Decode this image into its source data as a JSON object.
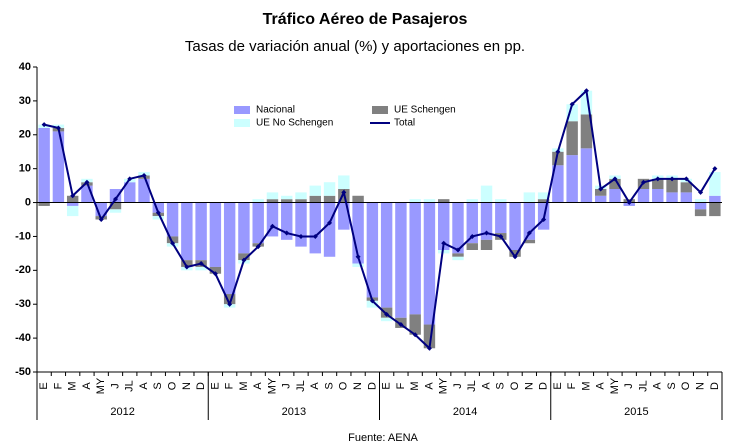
{
  "chart_data": {
    "type": "bar",
    "title": "Tráfico Aéreo de Pasajeros",
    "subtitle": "Tasas de variación anual (%) y aportaciones en pp.",
    "source": "Fuente: AENA",
    "stacked": true,
    "categories": [
      "E",
      "F",
      "M",
      "A",
      "MY",
      "J",
      "JL",
      "A",
      "S",
      "O",
      "N",
      "D",
      "E",
      "F",
      "M",
      "A",
      "MY",
      "J",
      "JL",
      "A",
      "S",
      "O",
      "N",
      "D",
      "E",
      "F",
      "M",
      "A",
      "MY",
      "J",
      "JL",
      "A",
      "S",
      "O",
      "N",
      "D",
      "E",
      "F",
      "M",
      "A",
      "MY",
      "J",
      "JL",
      "A",
      "S",
      "O",
      "N",
      "D"
    ],
    "years": [
      "2012",
      "2013",
      "2014",
      "2015"
    ],
    "series": [
      {
        "name": "Nacional",
        "color": "#9999ff",
        "values": [
          22,
          21,
          -1,
          5,
          -4,
          4,
          6,
          7,
          -3,
          -10,
          -17,
          -17,
          -19,
          -27,
          -15,
          -12,
          -10,
          -11,
          -13,
          -15,
          -16,
          -8,
          -18,
          -28,
          -31,
          -34,
          -33,
          -36,
          -14,
          -15,
          -12,
          -11,
          -9,
          -14,
          -11,
          -8,
          11,
          14,
          16,
          2,
          4,
          -1,
          4,
          4,
          3,
          3,
          -2,
          2
        ]
      },
      {
        "name": "UE Schengen",
        "color": "#808080",
        "values": [
          -1,
          1,
          2,
          1,
          -1,
          -2,
          0,
          1,
          -1,
          -2,
          -2,
          -2,
          -2,
          -3,
          -2,
          -1,
          1,
          1,
          1,
          2,
          2,
          4,
          2,
          -1,
          -3,
          -3,
          -6,
          -7,
          1,
          -1,
          -2,
          -3,
          -2,
          -2,
          -1,
          1,
          4,
          10,
          10,
          2,
          3,
          1,
          3,
          3,
          4,
          3,
          -2,
          -4
        ]
      },
      {
        "name": "UE No Schengen",
        "color": "#ccffff",
        "values": [
          1,
          1,
          -3,
          1,
          0,
          -1,
          1,
          1,
          -1,
          -1,
          -1,
          -1,
          0,
          -1,
          -1,
          1,
          2,
          1,
          2,
          3,
          4,
          4,
          -1,
          -2,
          -1,
          0,
          1,
          1,
          -1,
          -1,
          1,
          5,
          1,
          0,
          3,
          2,
          1,
          5,
          7,
          1,
          1,
          0,
          0,
          1,
          1,
          1,
          1,
          7
        ]
      },
      {
        "name": "Total",
        "color": "#000080",
        "type": "line",
        "values": [
          23,
          22,
          2,
          6,
          -5,
          1,
          7,
          8,
          -3,
          -12,
          -19,
          -18,
          -21,
          -30,
          -17,
          -13,
          -7,
          -9,
          -10,
          -10,
          -6,
          3,
          -16,
          -29,
          -33,
          -36,
          -39,
          -43,
          -12,
          -14,
          -10,
          -9,
          -10,
          -16,
          -9,
          -5,
          15,
          29,
          33,
          4,
          7,
          0,
          6,
          7,
          7,
          7,
          3,
          10
        ]
      }
    ],
    "ylim": [
      -50,
      40
    ],
    "yticks": [
      -50,
      -40,
      -30,
      -20,
      -10,
      0,
      10,
      20,
      30,
      40
    ],
    "grid": false,
    "legend": "top"
  }
}
